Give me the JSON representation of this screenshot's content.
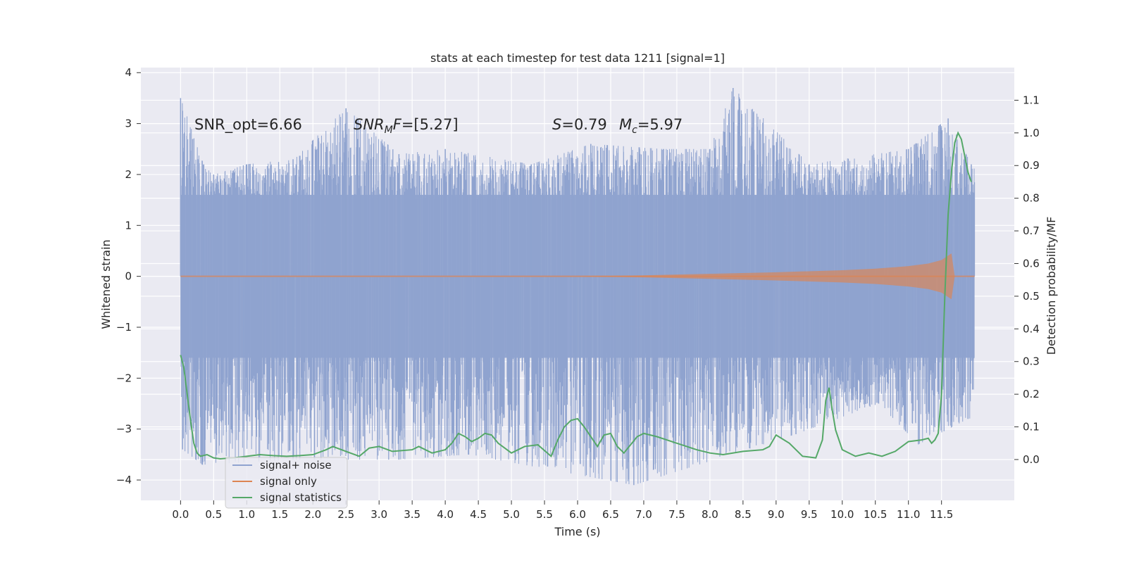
{
  "chart_data": {
    "type": "line",
    "title": "stats at each timestep for test data 1211 [signal=1]",
    "xlabel": "Time (s)",
    "ylabel": "Whitened strain",
    "y2label": "Detection probability/MF",
    "xlim": [
      -0.6,
      12.6
    ],
    "ylim": [
      -4.4,
      4.1
    ],
    "y2lim": [
      -0.125,
      1.2
    ],
    "grid": true,
    "legend_placement": "lower-left",
    "x_ticks": [
      "0.0",
      "0.5",
      "1.0",
      "1.5",
      "2.0",
      "2.5",
      "3.0",
      "3.5",
      "4.0",
      "4.5",
      "5.0",
      "5.5",
      "6.0",
      "6.5",
      "7.0",
      "7.5",
      "8.0",
      "8.5",
      "9.0",
      "9.5",
      "10.0",
      "10.5",
      "11.0",
      "11.5"
    ],
    "y_ticks": [
      "4",
      "3",
      "2",
      "1",
      "0",
      "−1",
      "−2",
      "−3",
      "−4"
    ],
    "y2_ticks": [
      "1.1",
      "1.0",
      "0.9",
      "0.8",
      "0.7",
      "0.6",
      "0.5",
      "0.4",
      "0.3",
      "0.2",
      "0.1",
      "0.0"
    ],
    "annotations": [
      {
        "id": "snr_opt",
        "text": "SNR_opt=6.66"
      },
      {
        "id": "snr_mf",
        "text_italic": "SNR",
        "sub": "M",
        "text_italic2": "F",
        "text": "=[5.27]"
      },
      {
        "id": "spin",
        "text_italic": "S",
        "text": "=0.79"
      },
      {
        "id": "chirp",
        "text_italic": "M",
        "sub": "c",
        "text": "=5.97"
      }
    ],
    "series": [
      {
        "name": "signal+ noise",
        "color": "#8fa3cf",
        "x_range": [
          0.0,
          12.0
        ],
        "envelope_upper_peaks": [
          {
            "x": 0.0,
            "y": 3.5
          },
          {
            "x": 0.35,
            "y": 2.2
          },
          {
            "x": 0.5,
            "y": 2.0
          },
          {
            "x": 1.0,
            "y": 2.2
          },
          {
            "x": 1.7,
            "y": 2.3
          },
          {
            "x": 2.5,
            "y": 3.3
          },
          {
            "x": 3.3,
            "y": 2.4
          },
          {
            "x": 4.0,
            "y": 2.5
          },
          {
            "x": 5.3,
            "y": 2.2
          },
          {
            "x": 6.2,
            "y": 2.6
          },
          {
            "x": 7.3,
            "y": 2.5
          },
          {
            "x": 8.0,
            "y": 2.5
          },
          {
            "x": 8.35,
            "y": 3.7
          },
          {
            "x": 9.5,
            "y": 2.2
          },
          {
            "x": 11.0,
            "y": 2.5
          },
          {
            "x": 11.6,
            "y": 3.1
          },
          {
            "x": 11.95,
            "y": 2.2
          }
        ],
        "envelope_lower_peaks": [
          {
            "x": 0.03,
            "y": -3.4
          },
          {
            "x": 0.33,
            "y": -3.7
          },
          {
            "x": 1.7,
            "y": -3.6
          },
          {
            "x": 3.3,
            "y": -3.6
          },
          {
            "x": 4.35,
            "y": -3.5
          },
          {
            "x": 6.85,
            "y": -4.1
          },
          {
            "x": 9.3,
            "y": -3.1
          },
          {
            "x": 10.55,
            "y": -2.5
          },
          {
            "x": 11.15,
            "y": -3.3
          },
          {
            "x": 11.9,
            "y": -2.8
          }
        ]
      },
      {
        "name": "signal only",
        "color": "#dd8452",
        "x": [
          0.0,
          6.0,
          7.0,
          8.0,
          9.0,
          10.0,
          10.5,
          11.0,
          11.3,
          11.5,
          11.65,
          11.7,
          12.0
        ],
        "amplitude": [
          0.0,
          0.0,
          0.02,
          0.05,
          0.08,
          0.12,
          0.15,
          0.2,
          0.25,
          0.32,
          0.45,
          0.0,
          0.0
        ]
      },
      {
        "name": "signal statistics",
        "color": "#55a868",
        "axis": "right",
        "x": [
          0.0,
          0.05,
          0.1,
          0.15,
          0.2,
          0.25,
          0.3,
          0.4,
          0.5,
          0.6,
          0.8,
          1.0,
          1.2,
          1.4,
          1.6,
          1.8,
          2.0,
          2.2,
          2.3,
          2.5,
          2.7,
          2.85,
          3.0,
          3.2,
          3.5,
          3.6,
          3.8,
          4.0,
          4.1,
          4.2,
          4.3,
          4.4,
          4.5,
          4.6,
          4.7,
          4.8,
          5.0,
          5.2,
          5.4,
          5.6,
          5.7,
          5.8,
          5.9,
          6.0,
          6.1,
          6.2,
          6.3,
          6.4,
          6.5,
          6.6,
          6.7,
          6.8,
          6.9,
          7.0,
          7.2,
          7.5,
          7.8,
          8.0,
          8.2,
          8.5,
          8.8,
          8.9,
          9.0,
          9.2,
          9.4,
          9.6,
          9.7,
          9.75,
          9.8,
          9.85,
          9.9,
          10.0,
          10.2,
          10.4,
          10.6,
          10.8,
          11.0,
          11.2,
          11.3,
          11.35,
          11.4,
          11.45,
          11.5,
          11.55,
          11.6,
          11.65,
          11.7,
          11.75,
          11.8,
          11.85,
          11.9,
          11.95
        ],
        "values": [
          0.32,
          0.28,
          0.2,
          0.12,
          0.05,
          0.02,
          0.01,
          0.015,
          0.005,
          0.002,
          0.005,
          0.01,
          0.015,
          0.012,
          0.01,
          0.012,
          0.015,
          0.03,
          0.04,
          0.025,
          0.01,
          0.035,
          0.04,
          0.025,
          0.03,
          0.04,
          0.02,
          0.03,
          0.05,
          0.08,
          0.07,
          0.055,
          0.065,
          0.08,
          0.075,
          0.05,
          0.02,
          0.04,
          0.045,
          0.01,
          0.06,
          0.1,
          0.12,
          0.125,
          0.1,
          0.07,
          0.04,
          0.075,
          0.08,
          0.04,
          0.02,
          0.045,
          0.07,
          0.08,
          0.07,
          0.05,
          0.03,
          0.02,
          0.015,
          0.025,
          0.03,
          0.04,
          0.075,
          0.05,
          0.01,
          0.005,
          0.06,
          0.18,
          0.22,
          0.15,
          0.09,
          0.03,
          0.01,
          0.02,
          0.01,
          0.025,
          0.055,
          0.06,
          0.065,
          0.05,
          0.06,
          0.08,
          0.2,
          0.5,
          0.75,
          0.88,
          0.97,
          1.0,
          0.98,
          0.93,
          0.88,
          0.85
        ]
      }
    ]
  }
}
